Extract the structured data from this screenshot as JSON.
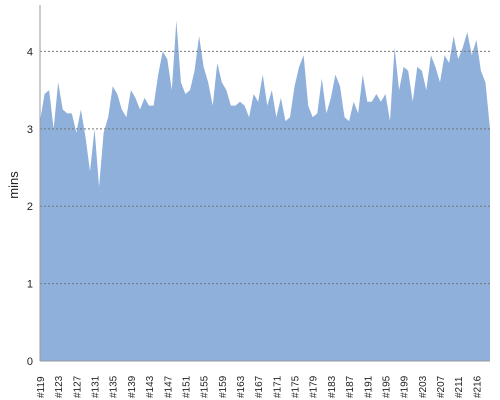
{
  "chart_data": {
    "type": "area",
    "y_label": "mins",
    "categories": [
      "#119",
      null,
      null,
      null,
      "#123",
      null,
      null,
      null,
      "#127",
      null,
      null,
      null,
      "#131",
      null,
      null,
      null,
      "#135",
      null,
      null,
      null,
      "#139",
      null,
      null,
      null,
      "#143",
      null,
      null,
      null,
      "#147",
      null,
      null,
      null,
      "#151",
      null,
      null,
      null,
      "#155",
      null,
      null,
      null,
      "#159",
      null,
      null,
      null,
      "#163",
      null,
      null,
      null,
      "#167",
      null,
      null,
      null,
      "#171",
      null,
      null,
      null,
      "#175",
      null,
      null,
      null,
      "#179",
      null,
      null,
      null,
      "#183",
      null,
      null,
      null,
      "#187",
      null,
      null,
      null,
      "#191",
      null,
      null,
      null,
      "#195",
      null,
      null,
      null,
      "#199",
      null,
      null,
      null,
      "#203",
      null,
      null,
      null,
      "#207",
      null,
      null,
      null,
      "#211",
      null,
      null,
      null,
      "#216",
      null,
      null,
      null
    ],
    "values": [
      3.1,
      3.45,
      3.5,
      3.0,
      3.6,
      3.25,
      3.2,
      3.2,
      2.95,
      3.25,
      2.9,
      2.45,
      3.0,
      2.25,
      2.95,
      3.15,
      3.55,
      3.45,
      3.25,
      3.15,
      3.5,
      3.4,
      3.25,
      3.4,
      3.3,
      3.3,
      3.7,
      4.0,
      3.9,
      3.5,
      4.4,
      3.6,
      3.45,
      3.5,
      3.75,
      4.2,
      3.8,
      3.6,
      3.3,
      3.85,
      3.6,
      3.5,
      3.3,
      3.3,
      3.35,
      3.3,
      3.15,
      3.45,
      3.35,
      3.7,
      3.3,
      3.5,
      3.15,
      3.4,
      3.1,
      3.15,
      3.55,
      3.8,
      3.95,
      3.3,
      3.15,
      3.2,
      3.65,
      3.2,
      3.4,
      3.7,
      3.55,
      3.15,
      3.1,
      3.35,
      3.2,
      3.7,
      3.35,
      3.35,
      3.45,
      3.35,
      3.45,
      3.1,
      4.05,
      3.5,
      3.8,
      3.75,
      3.35,
      3.8,
      3.75,
      3.5,
      3.95,
      3.8,
      3.6,
      3.95,
      3.85,
      4.2,
      3.9,
      4.05,
      4.25,
      3.95,
      4.15,
      3.75,
      3.6,
      3.0
    ],
    "color": "#8eb0da",
    "ylim": [
      0,
      4.6
    ],
    "yticks": [
      0,
      1,
      2,
      3,
      4
    ],
    "grid": true
  }
}
